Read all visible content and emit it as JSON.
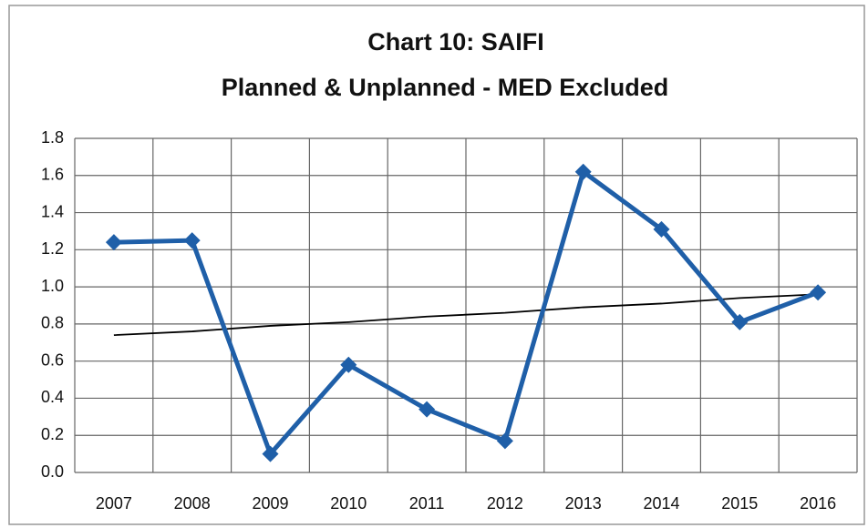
{
  "chart_data": {
    "type": "line",
    "title": "Chart 10:  SAIFI",
    "subtitle": "Planned & Unplanned - MED Excluded",
    "categories": [
      "2007",
      "2008",
      "2009",
      "2010",
      "2011",
      "2012",
      "2013",
      "2014",
      "2015",
      "2016"
    ],
    "series": [
      {
        "color": "#1f5fa8",
        "marker": "diamond",
        "values": [
          1.24,
          1.25,
          0.1,
          0.58,
          0.34,
          0.17,
          1.62,
          1.31,
          0.81,
          0.97
        ]
      },
      {
        "color": "#000000",
        "marker": "none",
        "values": [
          0.74,
          0.76,
          0.79,
          0.81,
          0.84,
          0.86,
          0.89,
          0.91,
          0.94,
          0.96
        ]
      }
    ],
    "ylim": [
      0,
      1.8
    ],
    "yticks": [
      {
        "value": 0,
        "label": "0.0"
      },
      {
        "value": 0.2,
        "label": "0.2"
      },
      {
        "value": 0.4,
        "label": "0.4"
      },
      {
        "value": 0.6,
        "label": "0.6"
      },
      {
        "value": 0.8,
        "label": "0.8"
      },
      {
        "value": 1,
        "label": "1.0"
      },
      {
        "value": 1.2,
        "label": "1.2"
      },
      {
        "value": 1.4,
        "label": "1.4"
      },
      {
        "value": 1.6,
        "label": "1.6"
      },
      {
        "value": 1.8,
        "label": "1.8"
      }
    ],
    "grid": true
  }
}
